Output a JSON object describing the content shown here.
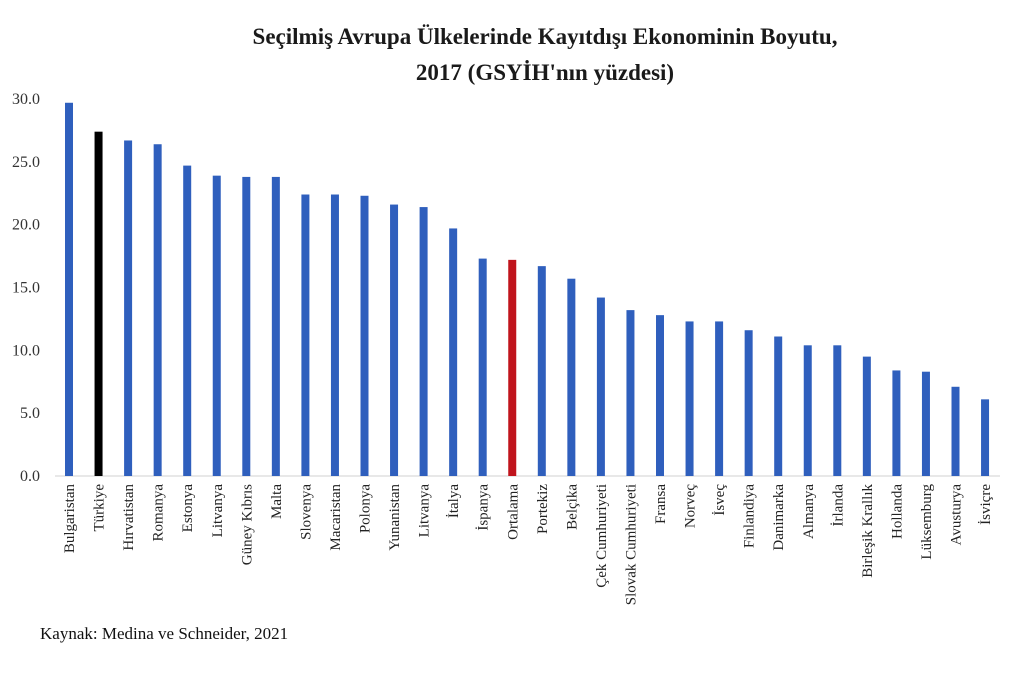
{
  "chart_data": {
    "type": "bar",
    "title": "Seçilmiş Avrupa Ülkelerinde Kayıtdışı Ekonominin Boyutu,",
    "subtitle": "2017 (GSYİH'nın yüzdesi)",
    "xlabel": "",
    "ylabel": "",
    "ylim": [
      0,
      30
    ],
    "yticks": [
      "0.0",
      "5.0",
      "10.0",
      "15.0",
      "20.0",
      "25.0",
      "30.0"
    ],
    "grid": false,
    "legend": "none",
    "colors": {
      "default": "#2f5fbd",
      "highlight": "#000000",
      "average": "#c0141c"
    },
    "categories": [
      "Bulgaristan",
      "Türkiye",
      "Hırvatistan",
      "Romanya",
      "Estonya",
      "Litvanya",
      "Güney Kıbrıs",
      "Malta",
      "Slovenya",
      "Macaristan",
      "Polonya",
      "Yunanistan",
      "Litvanya",
      "İtalya",
      "İspanya",
      "Ortalama",
      "Portekiz",
      "Belçika",
      "Çek Cumhuriyeti",
      "Slovak Cumhuriyeti",
      "Fransa",
      "Norveç",
      "İsveç",
      "Finlandiya",
      "Danimarka",
      "Almanya",
      "İrlanda",
      "Birleşik Krallık",
      "Hollanda",
      "Lüksemburg",
      "Avusturya",
      "İsviçre"
    ],
    "values": [
      29.7,
      27.4,
      26.7,
      26.4,
      24.7,
      23.9,
      23.8,
      23.8,
      22.4,
      22.4,
      22.3,
      21.6,
      21.4,
      19.7,
      17.3,
      17.2,
      16.7,
      15.7,
      14.2,
      13.2,
      12.8,
      12.3,
      12.3,
      11.6,
      11.1,
      10.4,
      10.4,
      9.5,
      8.4,
      8.3,
      7.1,
      6.1
    ],
    "bar_colors": [
      "default",
      "highlight",
      "default",
      "default",
      "default",
      "default",
      "default",
      "default",
      "default",
      "default",
      "default",
      "default",
      "default",
      "default",
      "default",
      "average",
      "default",
      "default",
      "default",
      "default",
      "default",
      "default",
      "default",
      "default",
      "default",
      "default",
      "default",
      "default",
      "default",
      "default",
      "default",
      "default"
    ]
  },
  "source": "Kaynak: Medina ve Schneider, 2021"
}
